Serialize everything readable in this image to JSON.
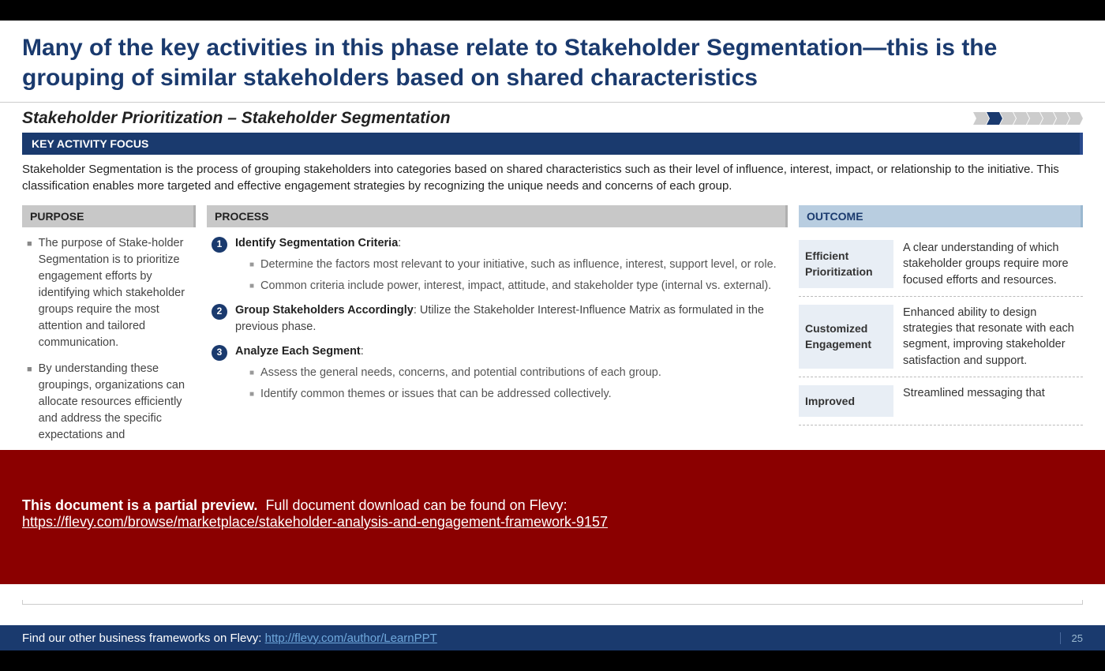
{
  "title": "Many of the key activities in this phase relate to Stakeholder Segmentation—this is the grouping of similar stakeholders based on shared characteristics",
  "subtitle": "Stakeholder Prioritization – Stakeholder Segmentation",
  "chevrons": {
    "count": 8,
    "active_index": 1
  },
  "key_bar": "KEY ACTIVITY FOCUS",
  "key_text": "Stakeholder Segmentation is the process of grouping stakeholders into categories based on shared characteristics such as their level of influence, interest, impact, or relationship to the initiative. This classification enables more targeted and effective engagement strategies by recognizing the unique needs and concerns of each group.",
  "purpose": {
    "header": "PURPOSE",
    "bullets": [
      "The purpose of Stake-holder Segmentation is to prioritize engagement efforts by identifying which stakeholder groups require the most attention and tailored communication.",
      "By understanding these groupings, organizations can allocate resources efficiently and address the specific expectations and"
    ]
  },
  "process": {
    "header": "PROCESS",
    "items": [
      {
        "num": "1",
        "title": "Identify Segmentation Criteria",
        "subs": [
          "Determine the factors most relevant to your initiative, such as influence, interest, support level, or role.",
          "Common criteria include power, interest, impact, attitude, and stakeholder type (internal vs. external)."
        ]
      },
      {
        "num": "2",
        "title": "Group Stakeholders Accordingly",
        "tail": ": Utilize the Stakeholder Interest-Influence Matrix as formulated in the previous phase.",
        "subs": []
      },
      {
        "num": "3",
        "title": "Analyze Each Segment",
        "subs": [
          "Assess the general needs, concerns, and potential contributions of each group.",
          "Identify common themes or issues that can be addressed collectively."
        ]
      }
    ]
  },
  "outcome": {
    "header": "OUTCOME",
    "rows": [
      {
        "label": "Efficient Prioritization",
        "text": "A clear understanding of which stakeholder groups require more focused efforts and resources."
      },
      {
        "label": "Customized Engagement",
        "text": "Enhanced ability to design strategies that resonate with each segment, improving stakeholder satisfaction and support."
      },
      {
        "label": "Improved",
        "text": "Streamlined messaging that"
      }
    ]
  },
  "preview": {
    "bold": "This document is a partial preview.",
    "rest": "Full document download can be found on Flevy:",
    "url": "https://flevy.com/browse/marketplace/stakeholder-analysis-and-engagement-framework-9157"
  },
  "footer": {
    "text": "Find our other business frameworks on Flevy:",
    "url": "http://flevy.com/author/LearnPPT",
    "page": "25"
  }
}
